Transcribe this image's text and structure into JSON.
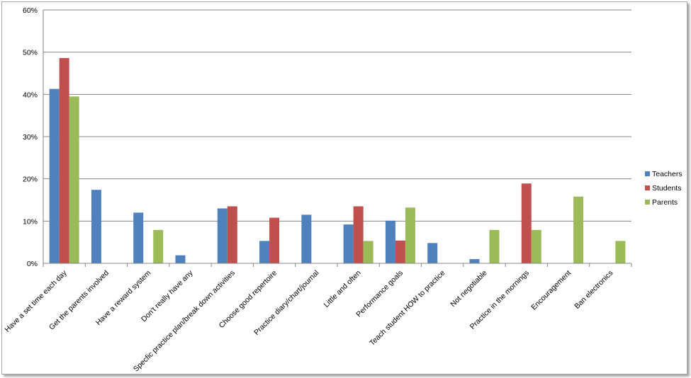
{
  "chart_data": {
    "type": "bar",
    "categories": [
      "Have a set time each day",
      "Get the parents involved",
      "Have a reward system",
      "Don't really have any",
      "Specfic practice plan/break down activities",
      "Choose good repertoire",
      "Practice diary/chart/journal",
      "Little and often",
      "Performance goals",
      "Teach student HOW to practice",
      "Not negotiable",
      "Practice in the mornings",
      "Encouragement",
      "Ban electronics"
    ],
    "series": [
      {
        "name": "Teachers",
        "color": "#4f81bd",
        "values": [
          41.3,
          17.4,
          12.0,
          1.9,
          13.0,
          5.3,
          11.5,
          9.2,
          10.1,
          4.8,
          1.0,
          0,
          0,
          0
        ]
      },
      {
        "name": "Students",
        "color": "#c0504d",
        "values": [
          48.6,
          0,
          0,
          0,
          13.5,
          10.8,
          0,
          13.5,
          5.4,
          0,
          0,
          18.9,
          0,
          0
        ]
      },
      {
        "name": "Parents",
        "color": "#9bbb59",
        "values": [
          39.5,
          0,
          7.9,
          0,
          0,
          0,
          0,
          5.3,
          13.2,
          0,
          7.9,
          7.9,
          15.8,
          5.3
        ]
      }
    ],
    "yticks": [
      "0%",
      "10%",
      "20%",
      "30%",
      "40%",
      "50%",
      "60%"
    ],
    "ylim": [
      0,
      60
    ],
    "grid": true,
    "legend": "right"
  }
}
